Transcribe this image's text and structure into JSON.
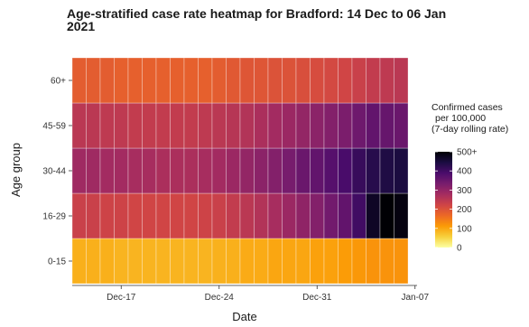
{
  "chart_data": {
    "type": "heatmap",
    "title_lines": [
      "Age-stratified case rate heatmap for Bradford: 14 Dec to 06 Jan",
      "2021"
    ],
    "xlabel": "Date",
    "ylabel": "Age group",
    "x": [
      "2020-12-14",
      "2020-12-15",
      "2020-12-16",
      "2020-12-17",
      "2020-12-18",
      "2020-12-19",
      "2020-12-20",
      "2020-12-21",
      "2020-12-22",
      "2020-12-23",
      "2020-12-24",
      "2020-12-25",
      "2020-12-26",
      "2020-12-27",
      "2020-12-28",
      "2020-12-29",
      "2020-12-30",
      "2020-12-31",
      "2021-01-01",
      "2021-01-02",
      "2021-01-03",
      "2021-01-04",
      "2021-01-05",
      "2021-01-06"
    ],
    "x_ticks": [
      {
        "date": "2020-12-17",
        "label": "Dec-17"
      },
      {
        "date": "2020-12-24",
        "label": "Dec-24"
      },
      {
        "date": "2020-12-31",
        "label": "Dec-31"
      },
      {
        "date": "2021-01-07",
        "label": "Jan-07"
      }
    ],
    "y_categories": [
      "0-15",
      "16-29",
      "30-44",
      "45-59",
      "60+"
    ],
    "values": {
      "60+": [
        185,
        185,
        185,
        180,
        180,
        180,
        180,
        180,
        180,
        180,
        185,
        190,
        195,
        195,
        200,
        200,
        205,
        210,
        215,
        220,
        230,
        240,
        245,
        250
      ],
      "45-59": [
        250,
        250,
        245,
        245,
        240,
        240,
        240,
        240,
        240,
        245,
        250,
        255,
        260,
        270,
        280,
        290,
        300,
        310,
        320,
        330,
        345,
        360,
        355,
        350
      ],
      "30-44": [
        285,
        285,
        280,
        280,
        275,
        275,
        270,
        270,
        270,
        275,
        280,
        290,
        300,
        310,
        320,
        335,
        350,
        360,
        375,
        390,
        410,
        430,
        440,
        445
      ],
      "16-29": [
        230,
        230,
        225,
        225,
        220,
        220,
        220,
        220,
        220,
        225,
        230,
        240,
        250,
        260,
        275,
        290,
        305,
        320,
        340,
        360,
        400,
        470,
        500,
        490
      ],
      "0-15": [
        90,
        90,
        90,
        85,
        85,
        85,
        85,
        85,
        85,
        85,
        88,
        90,
        95,
        95,
        100,
        100,
        100,
        105,
        105,
        110,
        115,
        120,
        120,
        120
      ]
    },
    "legend": {
      "title_lines": [
        "Confirmed cases",
        "per 100,000",
        "(7-day rolling rate)"
      ],
      "range": [
        0,
        500
      ],
      "ticks": [
        {
          "value": 0,
          "label": "0"
        },
        {
          "value": 100,
          "label": "100"
        },
        {
          "value": 200,
          "label": "200"
        },
        {
          "value": 300,
          "label": "300"
        },
        {
          "value": 400,
          "label": "400"
        },
        {
          "value": 500,
          "label": "500+"
        }
      ],
      "placement": "right"
    },
    "colormap": [
      "#fcffa4",
      "#f7d13d",
      "#fb9b06",
      "#ed6925",
      "#cf4446",
      "#a52c60",
      "#781c6d",
      "#4a0c6b",
      "#1b0c41",
      "#000004"
    ],
    "grid": true
  }
}
